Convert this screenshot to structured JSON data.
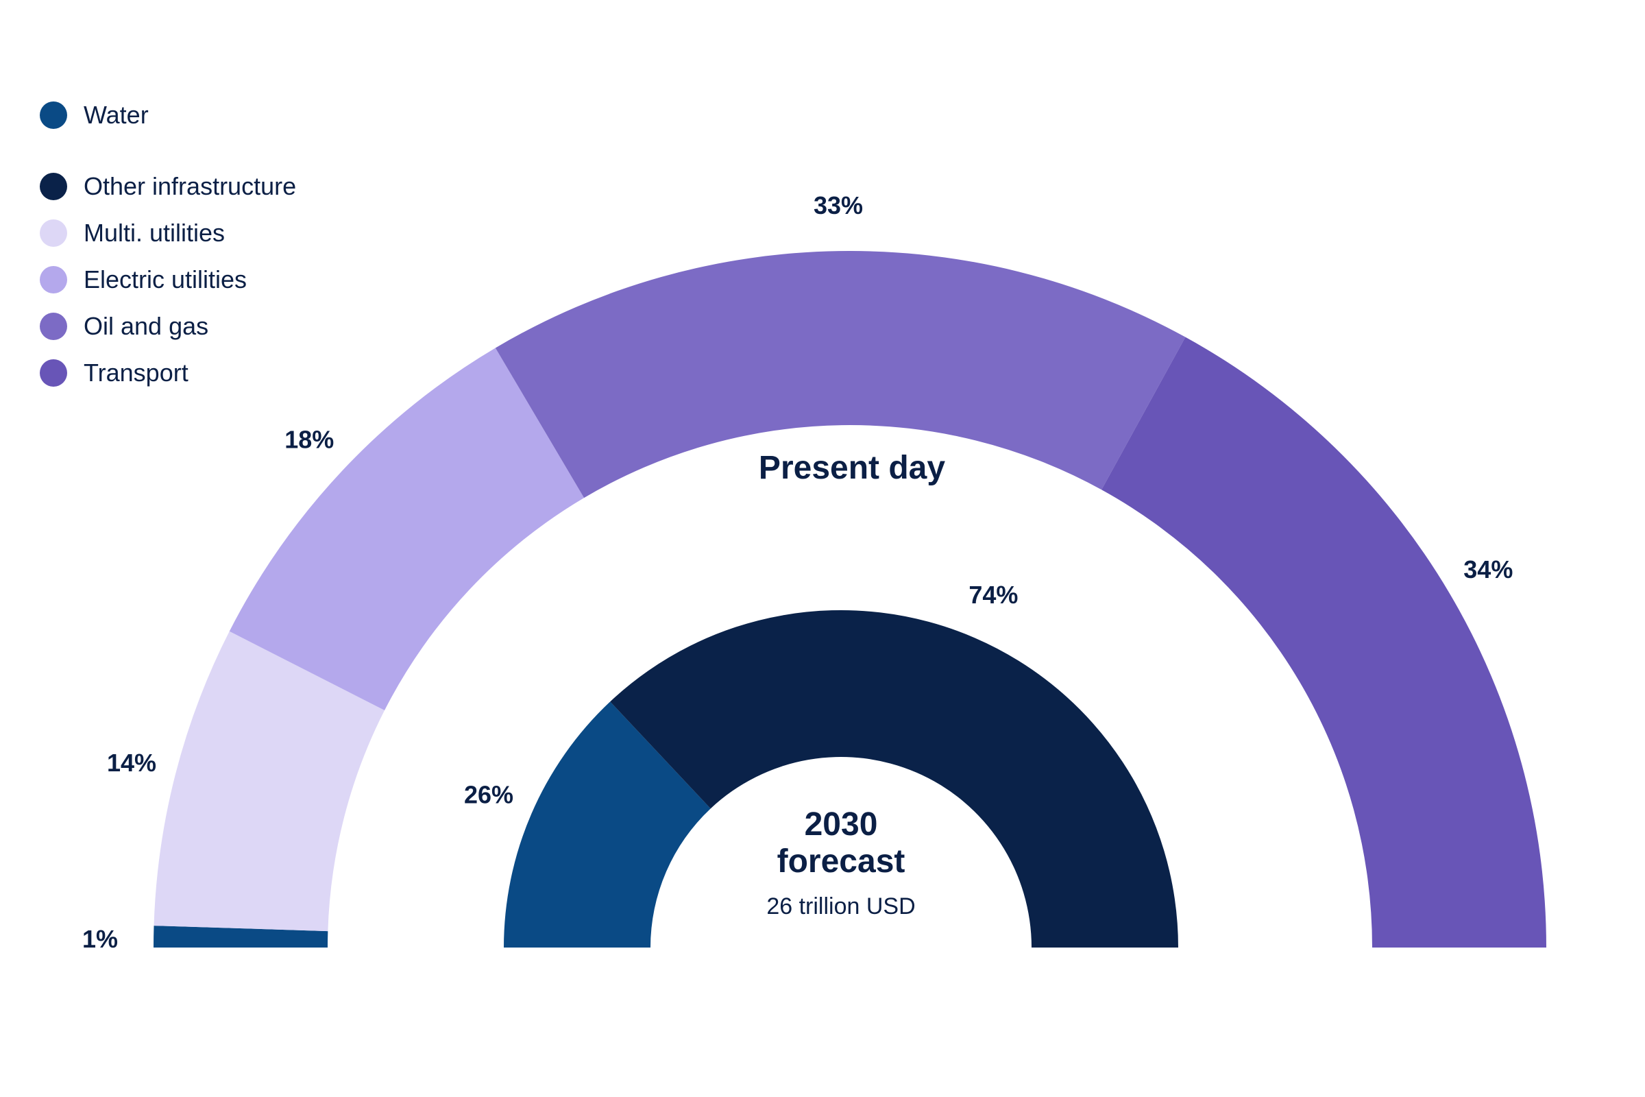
{
  "chart_data": [
    {
      "type": "pie",
      "variant": "half-donut",
      "title": "Present day",
      "subtitle": "",
      "series": [
        {
          "name": "Water",
          "value": 1,
          "label": "1%",
          "color": "#0a4a85"
        },
        {
          "name": "Multi. utilities",
          "value": 14,
          "label": "14%",
          "color": "#ddd7f6"
        },
        {
          "name": "Electric utilities",
          "value": 18,
          "label": "18%",
          "color": "#b4a8ec"
        },
        {
          "name": "Oil and gas",
          "value": 33,
          "label": "33%",
          "color": "#7c6bc5"
        },
        {
          "name": "Transport",
          "value": 34,
          "label": "34%",
          "color": "#6855b7"
        }
      ]
    },
    {
      "type": "pie",
      "variant": "half-donut",
      "title": "2030 forecast",
      "title_lines": [
        "2030",
        "forecast"
      ],
      "subtitle": "26 trillion USD",
      "series": [
        {
          "name": "Water",
          "value": 26,
          "label": "26%",
          "color": "#0a4a85"
        },
        {
          "name": "Other infrastructure",
          "value": 74,
          "label": "74%",
          "color": "#0a2249"
        }
      ]
    }
  ],
  "legend": {
    "placement": "top-left",
    "items": [
      {
        "label": "Water",
        "color": "#0a4a85"
      },
      {
        "label": "Other infrastructure",
        "color": "#0a2249"
      },
      {
        "label": "Multi. utilities",
        "color": "#ddd7f6"
      },
      {
        "label": "Electric utilities",
        "color": "#b4a8ec"
      },
      {
        "label": "Oil and gas",
        "color": "#7c6bc5"
      },
      {
        "label": "Transport",
        "color": "#6855b7"
      }
    ]
  }
}
